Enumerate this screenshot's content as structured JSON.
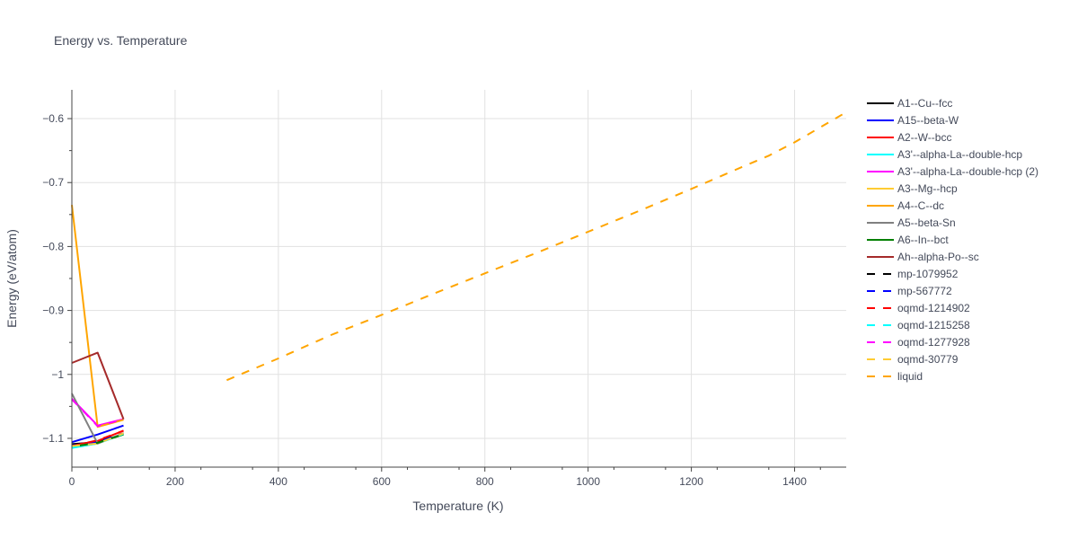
{
  "chart_data": {
    "type": "line",
    "title": "Energy vs. Temperature",
    "xlabel": "Temperature (K)",
    "ylabel": "Energy (eV/atom)",
    "xlim": [
      0,
      1500
    ],
    "ylim": [
      -1.145,
      -0.555
    ],
    "x_ticks": [
      0,
      200,
      400,
      600,
      800,
      1000,
      1200,
      1400
    ],
    "x_tick_labels": [
      "0",
      "200",
      "400",
      "600",
      "800",
      "1000",
      "1200",
      "1400"
    ],
    "y_ticks": [
      -1.1,
      -1.0,
      -0.9,
      -0.8,
      -0.7,
      -0.6
    ],
    "y_tick_labels": [
      "−1.1",
      "−1",
      "−0.9",
      "−0.8",
      "−0.7",
      "−0.6"
    ],
    "grid": true,
    "legend_position": "right",
    "series": [
      {
        "name": "A1--Cu--fcc",
        "color": "#000000",
        "dash": "solid",
        "x": [
          0,
          50,
          100
        ],
        "y": [
          -1.109,
          -1.106,
          -1.093
        ]
      },
      {
        "name": "A15--beta-W",
        "color": "#0000ff",
        "dash": "solid",
        "x": [
          0,
          50,
          100
        ],
        "y": [
          -1.106,
          -1.094,
          -1.08
        ]
      },
      {
        "name": "A2--W--bcc",
        "color": "#ff0000",
        "dash": "solid",
        "x": [
          0,
          50,
          100
        ],
        "y": [
          -1.111,
          -1.104,
          -1.088
        ]
      },
      {
        "name": "A3'--alpha-La--double-hcp",
        "color": "#00ffff",
        "dash": "solid",
        "x": [
          0,
          50,
          100
        ],
        "y": [
          -1.115,
          -1.108,
          -1.093
        ]
      },
      {
        "name": "A3'--alpha-La--double-hcp (2)",
        "color": "#ff00ff",
        "dash": "solid",
        "x": [
          0,
          50,
          100
        ],
        "y": [
          -1.038,
          -1.08,
          -1.07
        ]
      },
      {
        "name": "A3--Mg--hcp",
        "color": "#ffcc33",
        "dash": "solid",
        "x": [
          0,
          50,
          100
        ],
        "y": [
          -1.112,
          -1.108,
          -1.092
        ]
      },
      {
        "name": "A4--C--dc",
        "color": "#ffa500",
        "dash": "solid",
        "x": [
          0,
          50,
          100
        ],
        "y": [
          -0.735,
          -1.082,
          -1.071
        ]
      },
      {
        "name": "A5--beta-Sn",
        "color": "#808080",
        "dash": "solid",
        "x": [
          0,
          50,
          100
        ],
        "y": [
          -1.03,
          -1.108,
          -1.092
        ]
      },
      {
        "name": "A6--In--bct",
        "color": "#008000",
        "dash": "solid",
        "x": [
          0,
          50,
          100
        ],
        "y": [
          -1.113,
          -1.107,
          -1.094
        ]
      },
      {
        "name": "Ah--alpha-Po--sc",
        "color": "#a52a2a",
        "dash": "solid",
        "x": [
          0,
          50,
          100
        ],
        "y": [
          -0.982,
          -0.966,
          -1.07
        ]
      },
      {
        "name": "mp-1079952",
        "color": "#000000",
        "dash": "dash",
        "x": [
          0,
          50,
          100
        ],
        "y": [
          -1.11,
          -1.105,
          -1.092
        ]
      },
      {
        "name": "mp-567772",
        "color": "#0000ff",
        "dash": "dash",
        "x": [
          0,
          50,
          100
        ],
        "y": [
          -1.111,
          -1.106,
          -1.092
        ]
      },
      {
        "name": "oqmd-1214902",
        "color": "#ff0000",
        "dash": "dash",
        "x": [
          0,
          50,
          100
        ],
        "y": [
          -1.112,
          -1.103,
          -1.088
        ]
      },
      {
        "name": "oqmd-1215258",
        "color": "#00ffff",
        "dash": "dash",
        "x": [
          0,
          50,
          100
        ],
        "y": [
          -1.114,
          -1.108,
          -1.093
        ]
      },
      {
        "name": "oqmd-1277928",
        "color": "#ff00ff",
        "dash": "dash",
        "x": [
          0,
          50,
          100
        ],
        "y": [
          -1.039,
          -1.081,
          -1.07
        ]
      },
      {
        "name": "oqmd-30779",
        "color": "#ffcc33",
        "dash": "dash",
        "x": [
          0,
          50,
          100
        ],
        "y": [
          -1.112,
          -1.108,
          -1.092
        ]
      },
      {
        "name": "liquid",
        "color": "#ffa500",
        "dash": "dash",
        "x": [
          300,
          400,
          500,
          600,
          700,
          800,
          900,
          1000,
          1100,
          1200,
          1300,
          1350,
          1400,
          1500
        ],
        "y": [
          -1.009,
          -0.975,
          -0.939,
          -0.907,
          -0.874,
          -0.842,
          -0.81,
          -0.777,
          -0.744,
          -0.71,
          -0.675,
          -0.658,
          -0.637,
          -0.59
        ]
      }
    ]
  }
}
